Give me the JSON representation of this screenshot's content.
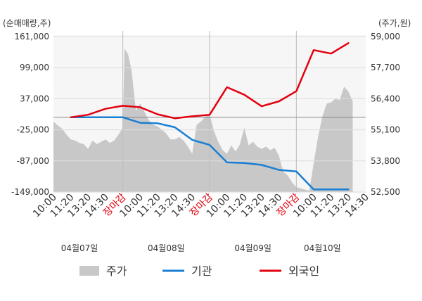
{
  "chart_data": {
    "type": "line",
    "left_axis_unit": "(순매매량,주)",
    "right_axis_unit": "(주가,원)",
    "left_ylim": [
      -149000,
      161000
    ],
    "left_ticks": [
      "161,000",
      "99,000",
      "37,000",
      "-25,000",
      "-87,000",
      "-149,000"
    ],
    "left_tick_values": [
      161000,
      99000,
      37000,
      -25000,
      -87000,
      -149000
    ],
    "right_ylim": [
      52500,
      59000
    ],
    "right_ticks": [
      "59,000",
      "57,700",
      "56,400",
      "55,100",
      "53,800",
      "52,500"
    ],
    "right_tick_values": [
      59000,
      57700,
      56400,
      55100,
      53800,
      52500
    ],
    "x_ticks": [
      "10:00",
      "11:20",
      "13:20",
      "14:30",
      "장마감",
      "10:00",
      "11:20",
      "13:20",
      "14:30",
      "장마감",
      "10:00",
      "11:20",
      "13:20",
      "14:30",
      "장마감",
      "10:00",
      "11:20",
      "13:20",
      "14:30"
    ],
    "x_tick_highlight": [
      false,
      false,
      false,
      false,
      true,
      false,
      false,
      false,
      false,
      true,
      false,
      false,
      false,
      false,
      true,
      false,
      false,
      false,
      false
    ],
    "day_labels": [
      {
        "label": "04월07일",
        "slot": 1.5
      },
      {
        "label": "04월08일",
        "slot": 6.5
      },
      {
        "label": "04월09일",
        "slot": 11.5
      },
      {
        "label": "04월10일",
        "slot": 15.5
      }
    ],
    "grid": true,
    "legend_position": "bottom",
    "legend": [
      "주가",
      "기관",
      "외국인"
    ],
    "colors": {
      "price": "#c8c8c8",
      "institution": "#1a7fd4",
      "foreign": "#e3000f",
      "highlight": "#e3000f"
    },
    "series": [
      {
        "name": "기관",
        "axis": "left",
        "points": [
          [
            1,
            0
          ],
          [
            2,
            0
          ],
          [
            3,
            0
          ],
          [
            4,
            0
          ],
          [
            5,
            -11000
          ],
          [
            6,
            -12000
          ],
          [
            7,
            -20000
          ],
          [
            8,
            -45000
          ],
          [
            9,
            -55000
          ],
          [
            10,
            -90000
          ],
          [
            11,
            -91000
          ],
          [
            12,
            -95000
          ],
          [
            13,
            -105000
          ],
          [
            14,
            -108000
          ],
          [
            15,
            -144000
          ],
          [
            16,
            -144000
          ],
          [
            17,
            -144000
          ]
        ]
      },
      {
        "name": "외국인",
        "axis": "left",
        "points": [
          [
            1,
            0
          ],
          [
            2,
            5000
          ],
          [
            3,
            17000
          ],
          [
            4,
            23000
          ],
          [
            5,
            20000
          ],
          [
            6,
            6000
          ],
          [
            7,
            -2000
          ],
          [
            8,
            2000
          ],
          [
            9,
            5000
          ],
          [
            10,
            60000
          ],
          [
            11,
            45000
          ],
          [
            12,
            22000
          ],
          [
            13,
            32000
          ],
          [
            14,
            52000
          ],
          [
            15,
            134000
          ],
          [
            16,
            127000
          ],
          [
            17,
            148000
          ]
        ]
      },
      {
        "name": "주가",
        "axis": "right",
        "points": [
          [
            0,
            55450
          ],
          [
            0.25,
            55280
          ],
          [
            0.5,
            55150
          ],
          [
            0.75,
            54900
          ],
          [
            1,
            54700
          ],
          [
            1.25,
            54650
          ],
          [
            1.5,
            54550
          ],
          [
            1.75,
            54500
          ],
          [
            2,
            54300
          ],
          [
            2.25,
            54650
          ],
          [
            2.5,
            54500
          ],
          [
            2.75,
            54600
          ],
          [
            3,
            54700
          ],
          [
            3.25,
            54550
          ],
          [
            3.5,
            54650
          ],
          [
            3.75,
            54900
          ],
          [
            4,
            55200
          ],
          [
            4.1,
            58500
          ],
          [
            4.3,
            58250
          ],
          [
            4.5,
            57600
          ],
          [
            4.75,
            55900
          ],
          [
            5,
            56200
          ],
          [
            5.25,
            55850
          ],
          [
            5.5,
            55500
          ],
          [
            5.75,
            55300
          ],
          [
            6,
            55250
          ],
          [
            6.25,
            55100
          ],
          [
            6.5,
            54950
          ],
          [
            6.75,
            54700
          ],
          [
            7,
            54700
          ],
          [
            7.25,
            54800
          ],
          [
            7.5,
            54650
          ],
          [
            7.75,
            54400
          ],
          [
            8,
            54100
          ],
          [
            8.25,
            55300
          ],
          [
            8.5,
            55450
          ],
          [
            8.75,
            55650
          ],
          [
            9,
            55750
          ],
          [
            9.25,
            55050
          ],
          [
            9.5,
            54600
          ],
          [
            9.75,
            54250
          ],
          [
            10,
            54100
          ],
          [
            10.25,
            54450
          ],
          [
            10.5,
            54200
          ],
          [
            10.75,
            54500
          ],
          [
            11,
            55200
          ],
          [
            11.25,
            54450
          ],
          [
            11.5,
            54600
          ],
          [
            11.75,
            54400
          ],
          [
            12,
            54300
          ],
          [
            12.25,
            54400
          ],
          [
            12.5,
            54250
          ],
          [
            12.75,
            54350
          ],
          [
            13,
            54000
          ],
          [
            13.25,
            53350
          ],
          [
            13.5,
            53200
          ],
          [
            13.75,
            52900
          ],
          [
            14,
            52700
          ],
          [
            14.25,
            52650
          ],
          [
            14.5,
            52600
          ],
          [
            14.75,
            52550
          ],
          [
            15,
            53700
          ],
          [
            15.25,
            54800
          ],
          [
            15.5,
            55650
          ],
          [
            15.75,
            56200
          ],
          [
            16,
            56250
          ],
          [
            16.25,
            56400
          ],
          [
            16.5,
            56350
          ],
          [
            16.75,
            56900
          ],
          [
            17,
            56700
          ],
          [
            17.25,
            56300
          ]
        ]
      }
    ]
  }
}
